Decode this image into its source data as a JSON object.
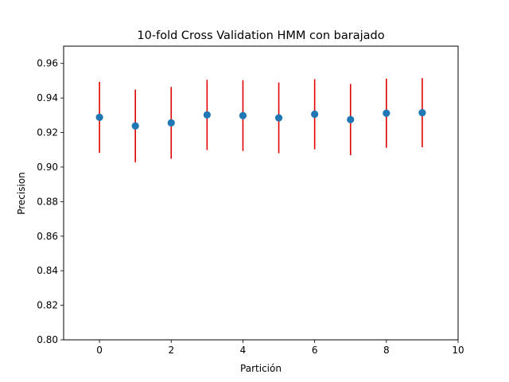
{
  "chart_data": {
    "type": "scatter",
    "title": "10-fold Cross Validation HMM con barajado",
    "xlabel": "Partición",
    "ylabel": "Precision",
    "xlim": [
      -1,
      10
    ],
    "ylim": [
      0.8,
      0.97
    ],
    "xticks": [
      0,
      2,
      4,
      6,
      8,
      10
    ],
    "xtick_labels": [
      "0",
      "2",
      "4",
      "6",
      "8",
      "10"
    ],
    "yticks": [
      0.8,
      0.82,
      0.84,
      0.86,
      0.88,
      0.9,
      0.92,
      0.94,
      0.96
    ],
    "ytick_labels": [
      "0.80",
      "0.82",
      "0.84",
      "0.86",
      "0.88",
      "0.90",
      "0.92",
      "0.94",
      "0.96"
    ],
    "grid": false,
    "series": [
      {
        "x": [
          0,
          1,
          2,
          3,
          4,
          5,
          6,
          7,
          8,
          9
        ],
        "y": [
          0.9288,
          0.9238,
          0.9256,
          0.9302,
          0.9298,
          0.9285,
          0.9306,
          0.9275,
          0.9312,
          0.9315
        ],
        "error": [
          0.0205,
          0.021,
          0.0208,
          0.0203,
          0.0205,
          0.0205,
          0.0203,
          0.0206,
          0.02,
          0.02
        ],
        "marker_color": "#1f77b4",
        "errorbar_color": "#e00000"
      }
    ]
  }
}
